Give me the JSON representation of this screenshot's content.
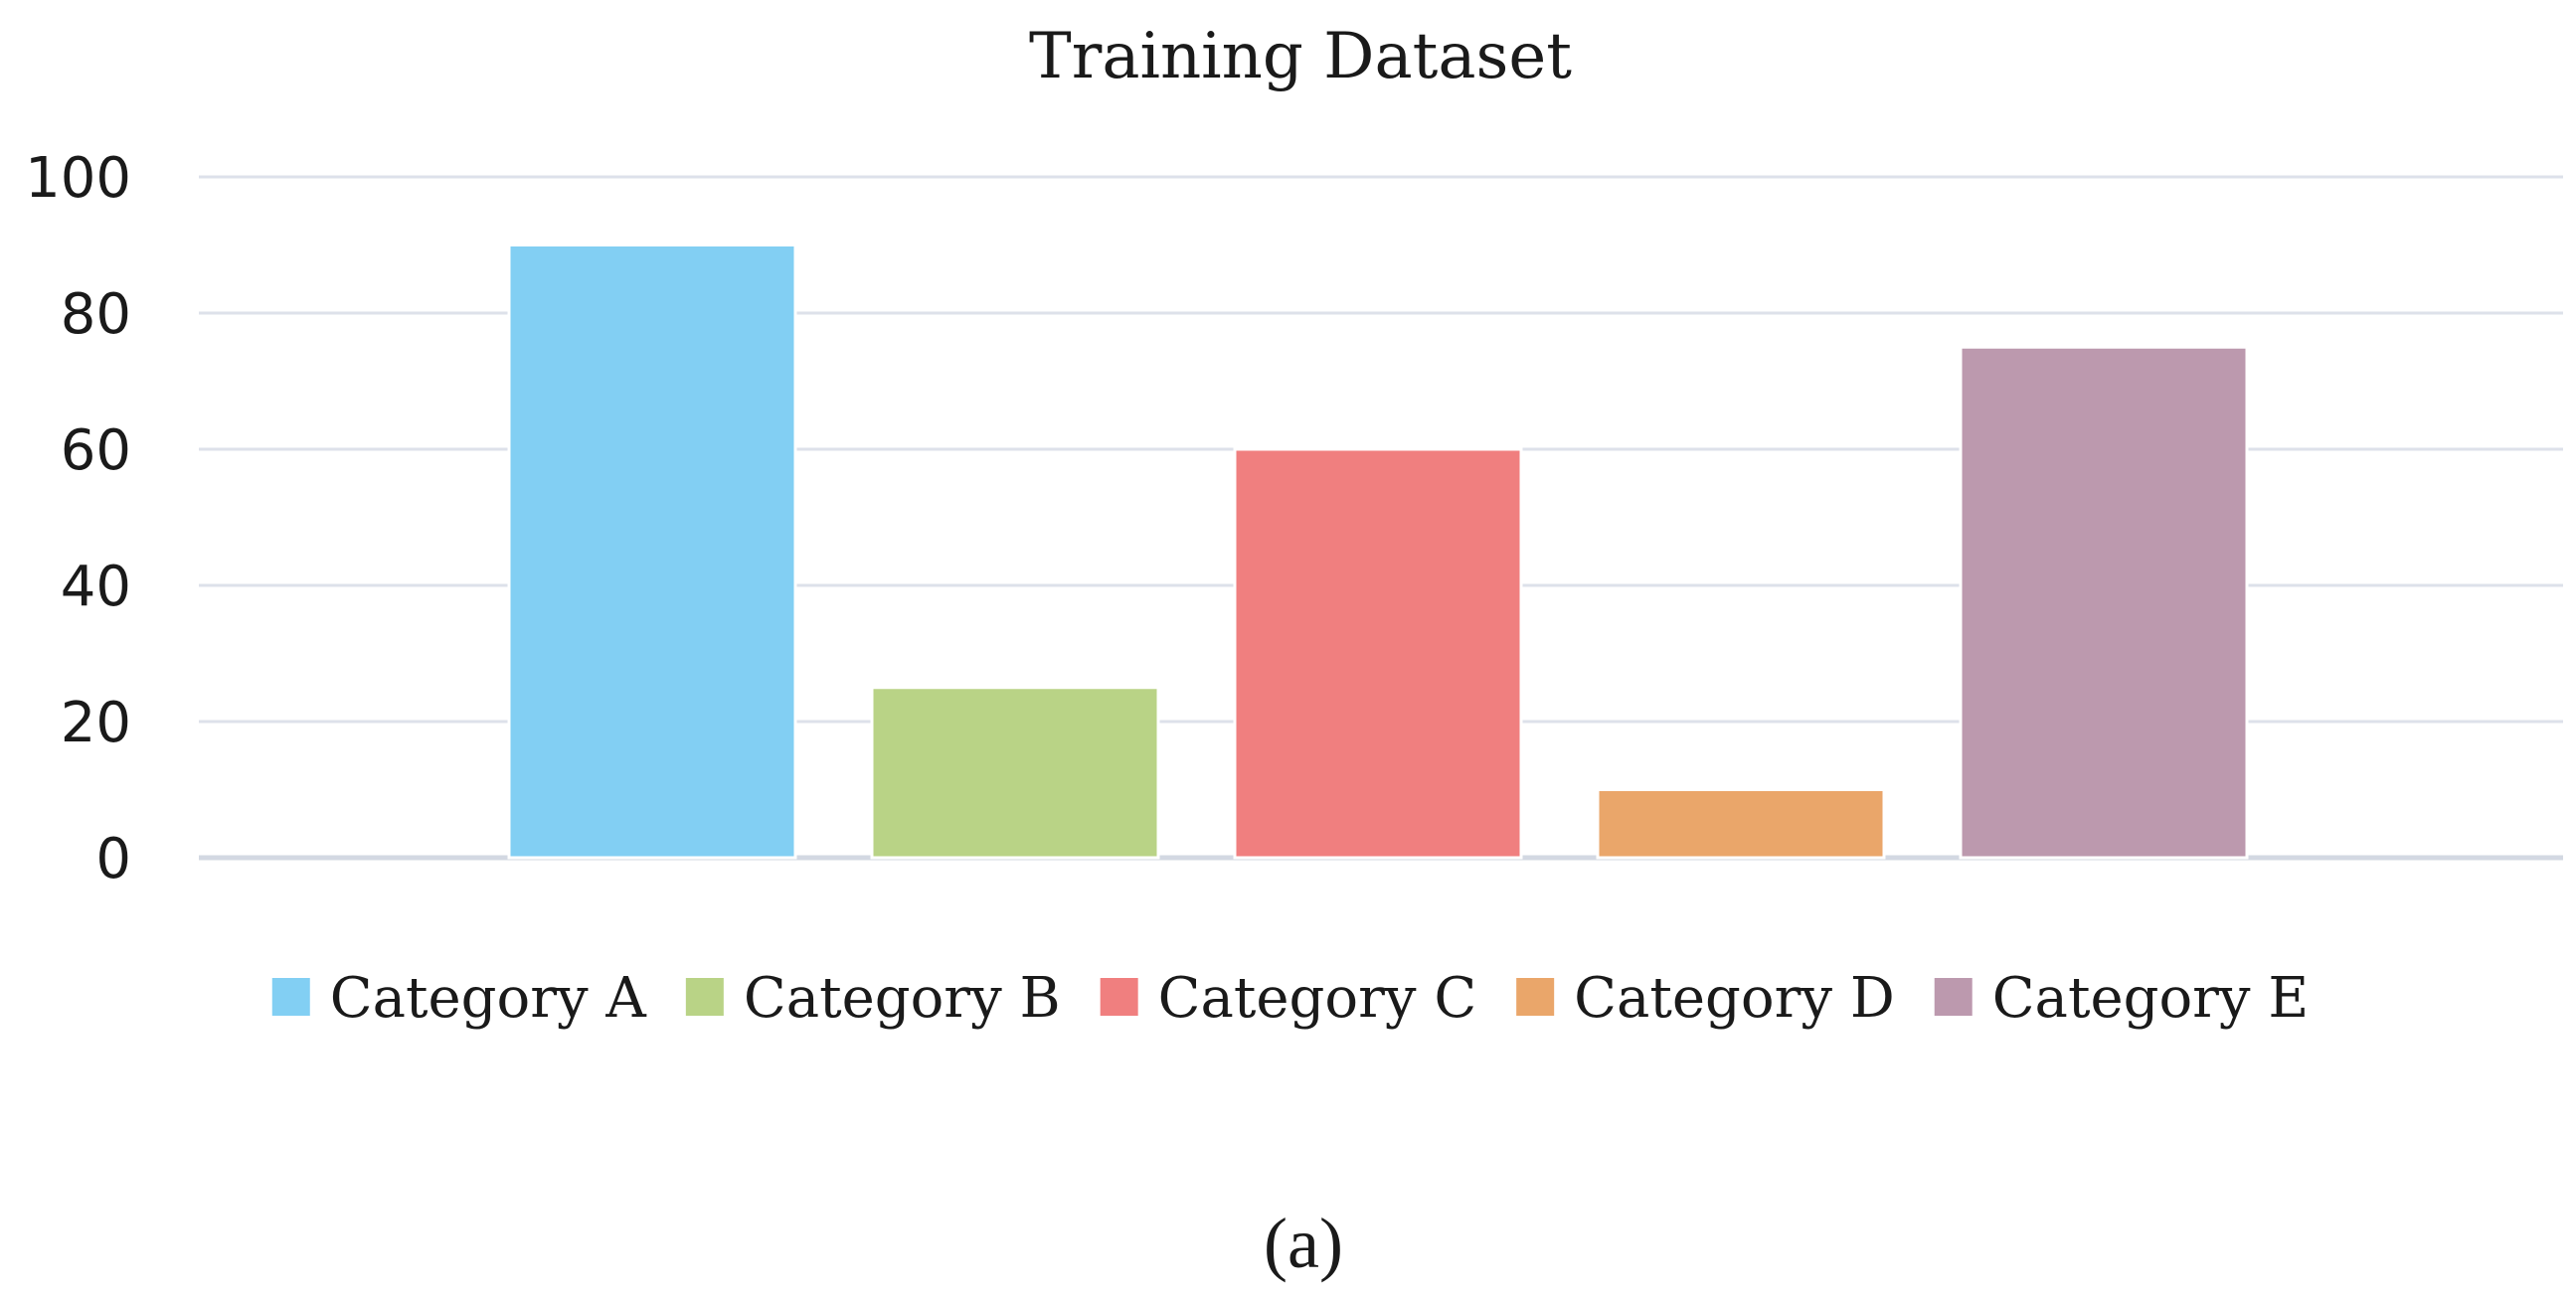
{
  "chart_data": {
    "type": "bar",
    "title": "Training Dataset",
    "xlabel": "",
    "ylabel": "",
    "ylim": [
      0,
      100
    ],
    "yticks": [
      "0",
      "20",
      "40",
      "60",
      "80",
      "100"
    ],
    "grid": true,
    "legend_position": "bottom",
    "categories": [
      "Category A",
      "Category B",
      "Category C",
      "Category D",
      "Category E"
    ],
    "values": [
      90,
      25,
      60,
      10,
      75
    ],
    "colors": [
      "#82cff3",
      "#b9d386",
      "#f07f7f",
      "#eaa66a",
      "#bc99ae"
    ]
  },
  "caption": "(a)"
}
